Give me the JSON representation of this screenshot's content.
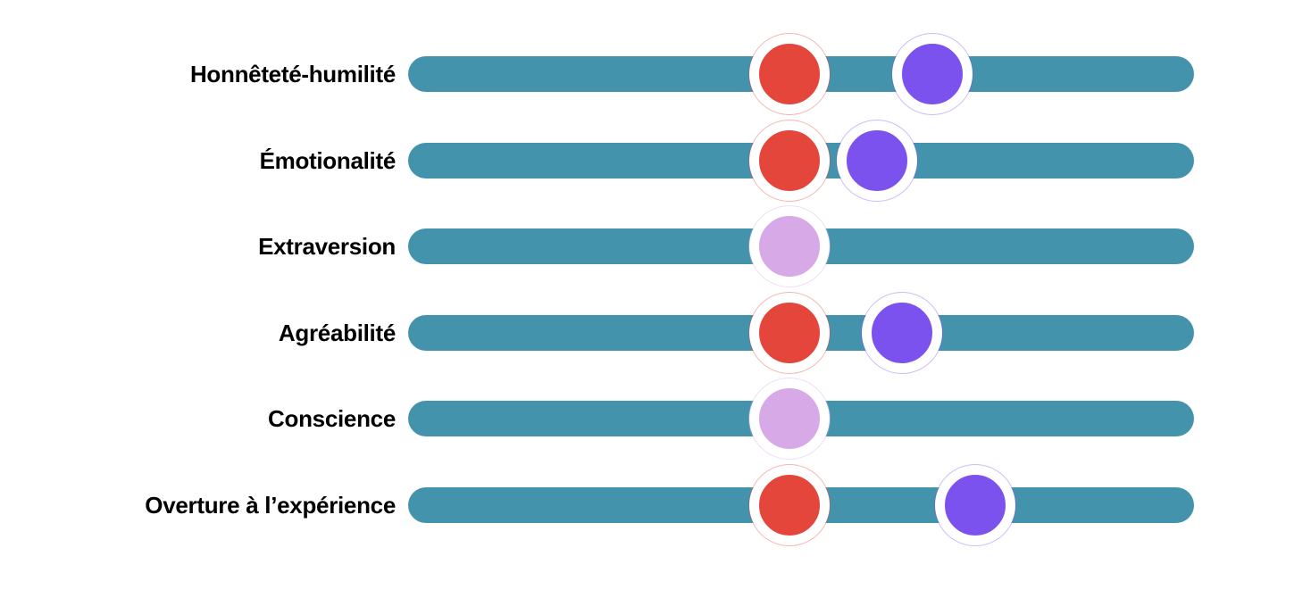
{
  "chart_data": {
    "type": "scatter",
    "subtype": "dot-strip-plot",
    "title": "",
    "note": "Six horizontal rounded track bars (HEXACO personality dimensions, French labels). Dots mark positions along each track as percent of bar length (0 = left end, 100 = right end). 'overlap' dots are the light-orchid markers where only one blended dot is shown.",
    "categories": [
      "Honnêteté-humilité",
      "Émotionalité",
      "Extraversion",
      "Agréabilité",
      "Conscience",
      "Overture à l’expérience"
    ],
    "rows": [
      {
        "label": "Honnêteté-humilité",
        "dots": [
          {
            "series": "red",
            "position_pct": 48.5
          },
          {
            "series": "purple",
            "position_pct": 66.7
          }
        ]
      },
      {
        "label": "Émotionalité",
        "dots": [
          {
            "series": "red",
            "position_pct": 48.5
          },
          {
            "series": "purple",
            "position_pct": 59.7
          }
        ]
      },
      {
        "label": "Extraversion",
        "dots": [
          {
            "series": "overlap",
            "position_pct": 48.5
          }
        ]
      },
      {
        "label": "Agréabilité",
        "dots": [
          {
            "series": "red",
            "position_pct": 48.5
          },
          {
            "series": "purple",
            "position_pct": 62.8
          }
        ]
      },
      {
        "label": "Conscience",
        "dots": [
          {
            "series": "overlap",
            "position_pct": 48.5
          }
        ]
      },
      {
        "label": "Overture à l’expérience",
        "dots": [
          {
            "series": "red",
            "position_pct": 48.5
          },
          {
            "series": "purple",
            "position_pct": 72.2
          }
        ]
      }
    ],
    "legend": []
  },
  "colors": {
    "bar": "#4493ad",
    "red": "#e5463b",
    "purple": "#7c52ee",
    "overlap": "#d7a9e6",
    "background": "#ffffff",
    "label_text": "#000000"
  }
}
